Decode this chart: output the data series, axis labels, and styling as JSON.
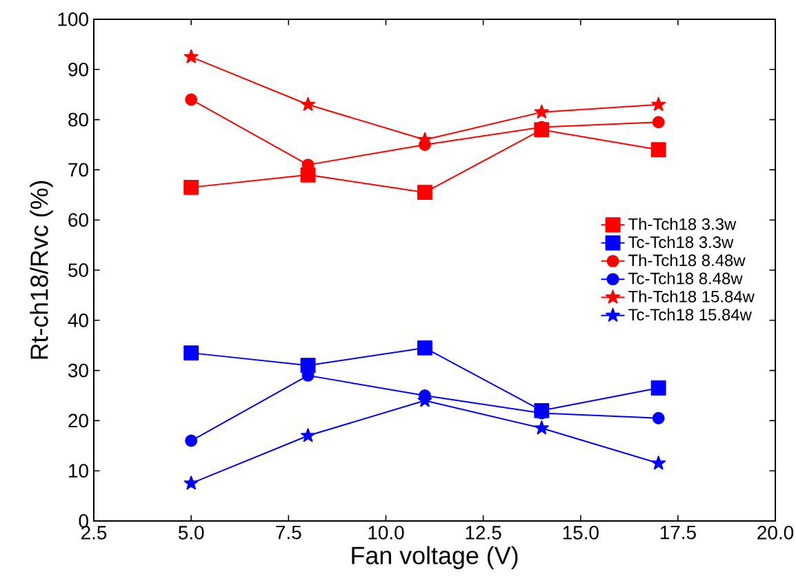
{
  "chart_data": {
    "type": "line",
    "xlabel": "Fan voltage (V)",
    "ylabel": "Rt-ch18/Rvc (%)",
    "x": [
      5,
      8,
      11,
      14,
      17
    ],
    "xlim": [
      2.5,
      20
    ],
    "xticks": [
      {
        "value": 2.5,
        "label": "2.5"
      },
      {
        "value": 5,
        "label": "5.0"
      },
      {
        "value": 7.5,
        "label": "7.5"
      },
      {
        "value": 10,
        "label": "10.0"
      },
      {
        "value": 12.5,
        "label": "12.5"
      },
      {
        "value": 15,
        "label": "15.0"
      },
      {
        "value": 17.5,
        "label": "17.5"
      },
      {
        "value": 20,
        "label": "20.0"
      }
    ],
    "ylim": [
      0,
      100
    ],
    "yticks": [
      0,
      10,
      20,
      30,
      40,
      50,
      60,
      70,
      80,
      90,
      100
    ],
    "grid": false,
    "legend": "right",
    "line_style": "solid",
    "series": [
      {
        "name": "Th-Tch18 3.3w",
        "color": "#ff0000",
        "marker": "square",
        "values": [
          66.5,
          69,
          65.5,
          78,
          74
        ]
      },
      {
        "name": "Tc-Tch18 3.3w",
        "color": "#0000ff",
        "marker": "square",
        "values": [
          33.5,
          31,
          34.5,
          22,
          26.5
        ]
      },
      {
        "name": "Th-Tch18 8.48w",
        "color": "#ff0000",
        "marker": "circle",
        "values": [
          84,
          71,
          75,
          78.5,
          79.5
        ]
      },
      {
        "name": "Tc-Tch18 8.48w",
        "color": "#0000ff",
        "marker": "circle",
        "values": [
          16,
          29,
          25,
          21.5,
          20.5
        ]
      },
      {
        "name": "Th-Tch18 15.84w",
        "color": "#ff0000",
        "marker": "star",
        "values": [
          92.5,
          83,
          76,
          81.5,
          83
        ]
      },
      {
        "name": "Tc-Tch18 15.84w",
        "color": "#0000ff",
        "marker": "star",
        "values": [
          7.5,
          17,
          24,
          18.5,
          11.5
        ]
      }
    ]
  }
}
